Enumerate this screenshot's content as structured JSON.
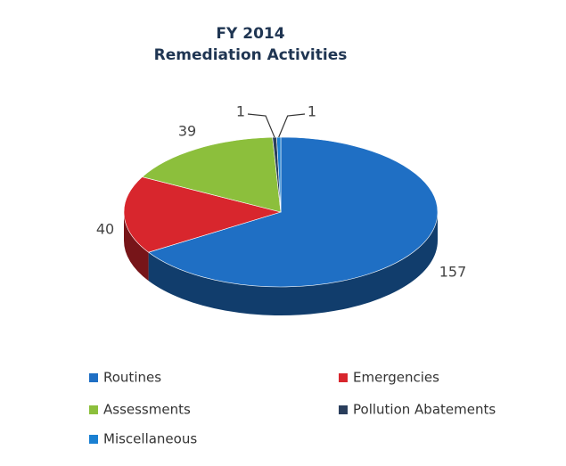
{
  "chart_data": {
    "type": "pie3d",
    "title": "FY 2014",
    "subtitle": "Remediation Activities",
    "categories": [
      "Routines",
      "Emergencies",
      "Assessments",
      "Pollution Abatements",
      "Miscellaneous"
    ],
    "values": [
      157,
      40,
      39,
      1,
      1
    ],
    "colors": [
      "#1f6fc4",
      "#d8262d",
      "#8cbf3c",
      "#2a3e5c",
      "#1a80d2"
    ],
    "legend": "bottom"
  }
}
